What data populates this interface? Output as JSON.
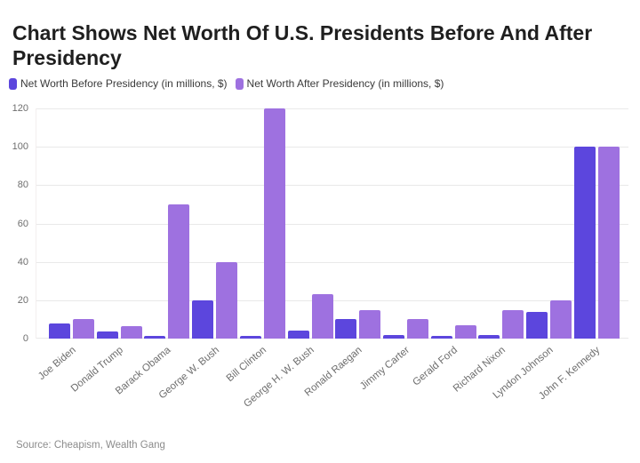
{
  "header": {
    "title": "Chart Shows Net Worth Of U.S. Presidents Before And After Presidency"
  },
  "legend": {
    "items": [
      {
        "label": "Net Worth Before Presidency (in millions, $)",
        "color": "#5c46dd"
      },
      {
        "label": "Net Worth After Presidency (in millions, $)",
        "color": "#9e71e0"
      }
    ]
  },
  "chart_data": {
    "type": "bar",
    "title": "Chart Shows Net Worth Of U.S. Presidents Before And After Presidency",
    "categories": [
      "Joe Biden",
      "Donald Trump",
      "Barack Obama",
      "George W. Bush",
      "Bill Clinton",
      "George H. W. Bush",
      "Ronald Raegan",
      "Jimmy Carter",
      "Gerald Ford",
      "Richard Nixon",
      "Lyndon Johnson",
      "John F. Kennedy"
    ],
    "series": [
      {
        "name": "Net Worth Before Presidency (in millions, $)",
        "color": "#5c46dd",
        "values": [
          8,
          3.5,
          1.3,
          20,
          1.3,
          4,
          10,
          2,
          1.3,
          2,
          14,
          100
        ]
      },
      {
        "name": "Net Worth After Presidency (in millions, $)",
        "color": "#9e71e0",
        "values": [
          10,
          6.5,
          70,
          40,
          120,
          23,
          15,
          10,
          7,
          15,
          20,
          100
        ]
      }
    ],
    "xlabel": "",
    "ylabel": "",
    "ylim": [
      0,
      120
    ],
    "yticks": [
      0,
      20,
      40,
      60,
      80,
      100,
      120
    ],
    "grid": true,
    "legend_position": "top",
    "gridline_color": "#e9e9e9",
    "tick_label_color": "#6e6e6e"
  },
  "footer": {
    "source": "Source: Cheapism, Wealth Gang"
  }
}
